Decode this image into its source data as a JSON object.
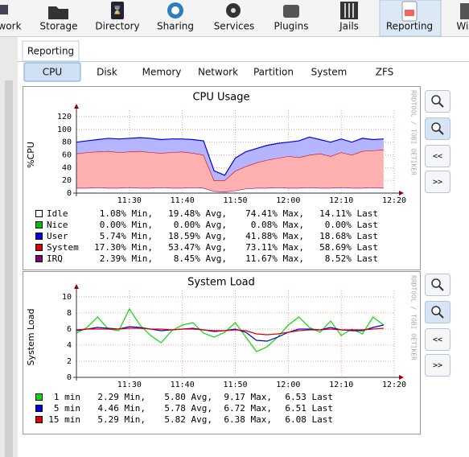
{
  "toolbar": [
    "work",
    "Storage",
    "Directory",
    "Sharing",
    "Services",
    "Plugins",
    "Jails",
    "Reporting",
    "Wiz"
  ],
  "active_tab": "Reporting",
  "subtabs": [
    "CPU",
    "Disk",
    "Memory",
    "Network",
    "Partition",
    "System",
    "ZFS"
  ],
  "nav_buttons": [
    "<<",
    ">>"
  ],
  "chart_data": [
    {
      "type": "area",
      "title": "CPU Usage",
      "y_label": "%CPU",
      "watermark": "RRDTOOL / TOBI OETIKER",
      "xlim": [
        680,
        740
      ],
      "xticks": [
        {
          "value": 690,
          "label": "11:30"
        },
        {
          "value": 700,
          "label": "11:40"
        },
        {
          "value": 710,
          "label": "11:50"
        },
        {
          "value": 720,
          "label": "12:00"
        },
        {
          "value": 730,
          "label": "12:10"
        },
        {
          "value": 740,
          "label": "12:20"
        }
      ],
      "ylim": [
        0,
        120
      ],
      "yticks": [
        0,
        20,
        40,
        60,
        80,
        100,
        120
      ],
      "grid": true,
      "x": [
        680,
        682,
        684,
        686,
        688,
        690,
        692,
        694,
        696,
        698,
        700,
        702,
        704,
        706,
        708,
        710,
        712,
        714,
        716,
        718,
        720,
        722,
        724,
        726,
        728,
        730,
        732,
        734,
        736,
        738
      ],
      "series": [
        {
          "name": "IRQ",
          "color": "#800080",
          "style": "line",
          "values": [
            8,
            8,
            9,
            8,
            8,
            9,
            8,
            8,
            9,
            8,
            8,
            9,
            8,
            3,
            2,
            4,
            7,
            8,
            8,
            9,
            8,
            8,
            9,
            8,
            8,
            9,
            8,
            8,
            9,
            8
          ]
        },
        {
          "name": "System",
          "color": "#e00000",
          "fill": "#ffb0b0",
          "style": "area",
          "values": [
            54,
            56,
            56,
            58,
            56,
            56,
            58,
            56,
            54,
            56,
            57,
            54,
            52,
            17,
            18,
            31,
            35,
            40,
            44,
            46,
            50,
            48,
            51,
            54,
            50,
            55,
            52,
            58,
            58,
            60
          ]
        },
        {
          "name": "User",
          "color": "#0000e0",
          "fill": "#b4b4ff",
          "style": "area",
          "values": [
            18,
            18,
            19,
            20,
            21,
            21,
            21,
            22,
            21,
            21,
            20,
            21,
            22,
            15,
            8,
            20,
            23,
            22,
            23,
            23,
            22,
            26,
            28,
            22,
            22,
            21,
            20,
            20,
            17,
            17
          ]
        }
      ],
      "legend": [
        {
          "color": "#ffffff",
          "cells": [
            "Idle",
            "1.08% Min,",
            "19.48% Avg,",
            "74.41% Max,",
            "14.11% Last"
          ]
        },
        {
          "color": "#00c000",
          "cells": [
            "Nice",
            "0.00% Min,",
            "0.00% Avg,",
            "0.08% Max,",
            "0.00% Last"
          ]
        },
        {
          "color": "#0000e0",
          "cells": [
            "User",
            "5.74% Min,",
            "18.59% Avg,",
            "41.88% Max,",
            "18.68% Last"
          ]
        },
        {
          "color": "#e00000",
          "cells": [
            "System",
            "17.30% Min,",
            "53.47% Avg,",
            "73.11% Max,",
            "58.69% Last"
          ]
        },
        {
          "color": "#800080",
          "cells": [
            "IRQ",
            "2.39% Min,",
            "8.45% Avg,",
            "11.67% Max,",
            "8.52% Last"
          ]
        }
      ]
    },
    {
      "type": "line",
      "title": "System Load",
      "y_label": "System Load",
      "watermark": "RRDTOOL / TOBI OETIKER",
      "xlim": [
        680,
        740
      ],
      "xticks": [
        {
          "value": 690,
          "label": "11:30"
        },
        {
          "value": 700,
          "label": "11:40"
        },
        {
          "value": 710,
          "label": "11:50"
        },
        {
          "value": 720,
          "label": "12:00"
        },
        {
          "value": 730,
          "label": "12:10"
        },
        {
          "value": 740,
          "label": "12:20"
        }
      ],
      "ylim": [
        0,
        10
      ],
      "yticks": [
        0,
        2,
        4,
        6,
        8,
        10
      ],
      "grid": true,
      "x": [
        680,
        682,
        684,
        686,
        688,
        690,
        692,
        694,
        696,
        698,
        700,
        702,
        704,
        706,
        708,
        710,
        712,
        714,
        716,
        718,
        720,
        722,
        724,
        726,
        728,
        730,
        732,
        734,
        736,
        738
      ],
      "series": [
        {
          "name": "1 min",
          "color": "#00e000",
          "values": [
            5.5,
            6.2,
            7.5,
            6.0,
            5.8,
            8.5,
            6.5,
            5.2,
            4.3,
            5.8,
            6.5,
            6.8,
            5.5,
            5.0,
            5.6,
            6.8,
            5.0,
            3.2,
            3.8,
            5.0,
            6.5,
            7.5,
            6.2,
            5.6,
            7.0,
            5.2,
            6.0,
            5.4,
            7.5,
            6.5
          ]
        },
        {
          "name": "5 min",
          "color": "#0000e0",
          "values": [
            5.8,
            6.0,
            6.2,
            6.1,
            6.0,
            6.3,
            6.2,
            6.0,
            5.8,
            5.9,
            6.0,
            6.1,
            5.9,
            5.7,
            5.8,
            6.0,
            5.6,
            4.6,
            4.5,
            5.0,
            5.6,
            6.0,
            6.0,
            5.9,
            6.2,
            5.9,
            5.8,
            5.8,
            6.2,
            6.5
          ]
        },
        {
          "name": "15 min",
          "color": "#e00000",
          "values": [
            5.9,
            6.0,
            6.0,
            6.0,
            6.0,
            6.1,
            6.1,
            6.0,
            6.0,
            5.9,
            6.0,
            6.0,
            5.9,
            5.8,
            5.8,
            5.9,
            5.8,
            5.4,
            5.3,
            5.4,
            5.6,
            5.8,
            5.9,
            5.9,
            6.0,
            5.9,
            5.9,
            5.9,
            6.0,
            6.1
          ]
        }
      ],
      "legend": [
        {
          "color": "#00e000",
          "cells": [
            "1 min",
            "2.29 Min,",
            "5.80 Avg,",
            "9.17 Max,",
            "6.53 Last"
          ]
        },
        {
          "color": "#0000e0",
          "cells": [
            "5 min",
            "4.46 Min,",
            "5.78 Avg,",
            "6.72 Max,",
            "6.51 Last"
          ]
        },
        {
          "color": "#e00000",
          "cells": [
            "15 min",
            "5.29 Min,",
            "5.82 Avg,",
            "6.38 Max,",
            "6.08 Last"
          ]
        }
      ]
    }
  ]
}
